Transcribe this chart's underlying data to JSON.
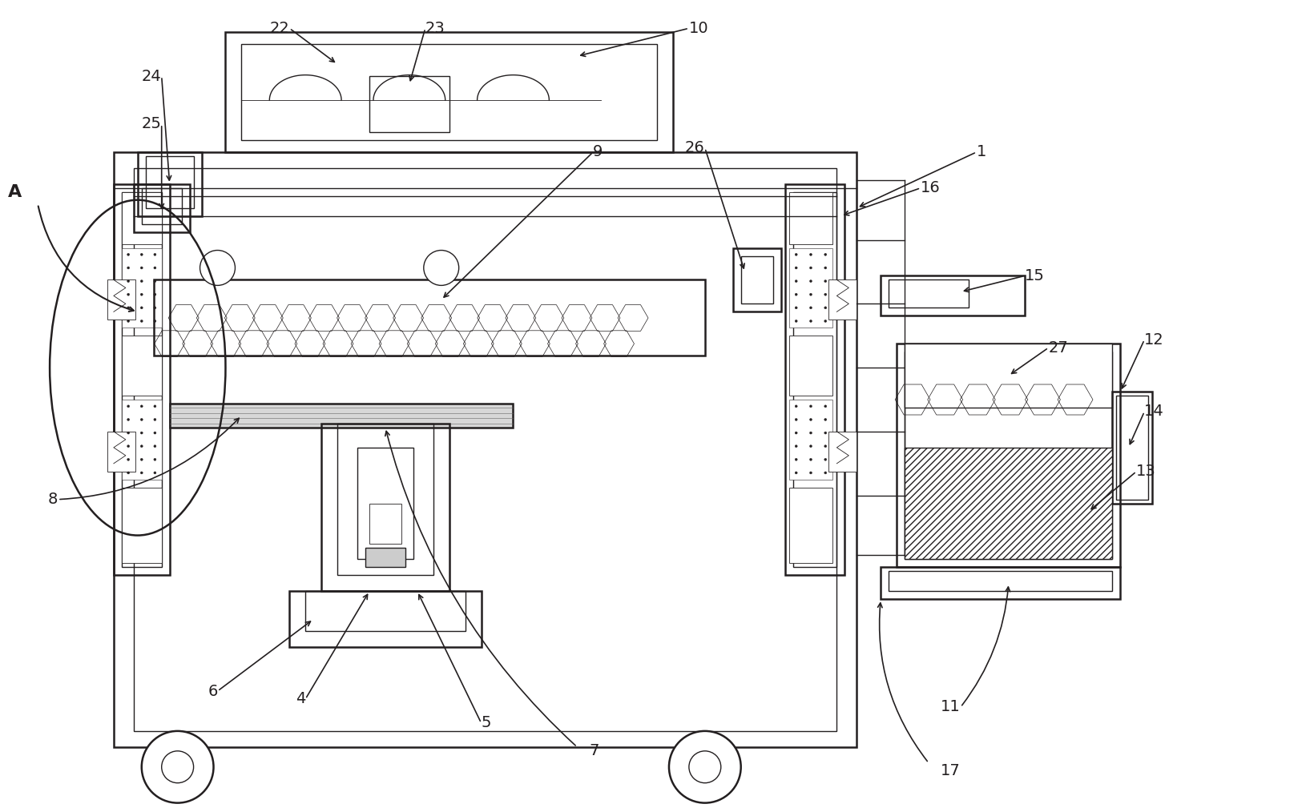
{
  "bg_color": "#ffffff",
  "line_color": "#231f20",
  "fig_width": 16.35,
  "fig_height": 10.09
}
